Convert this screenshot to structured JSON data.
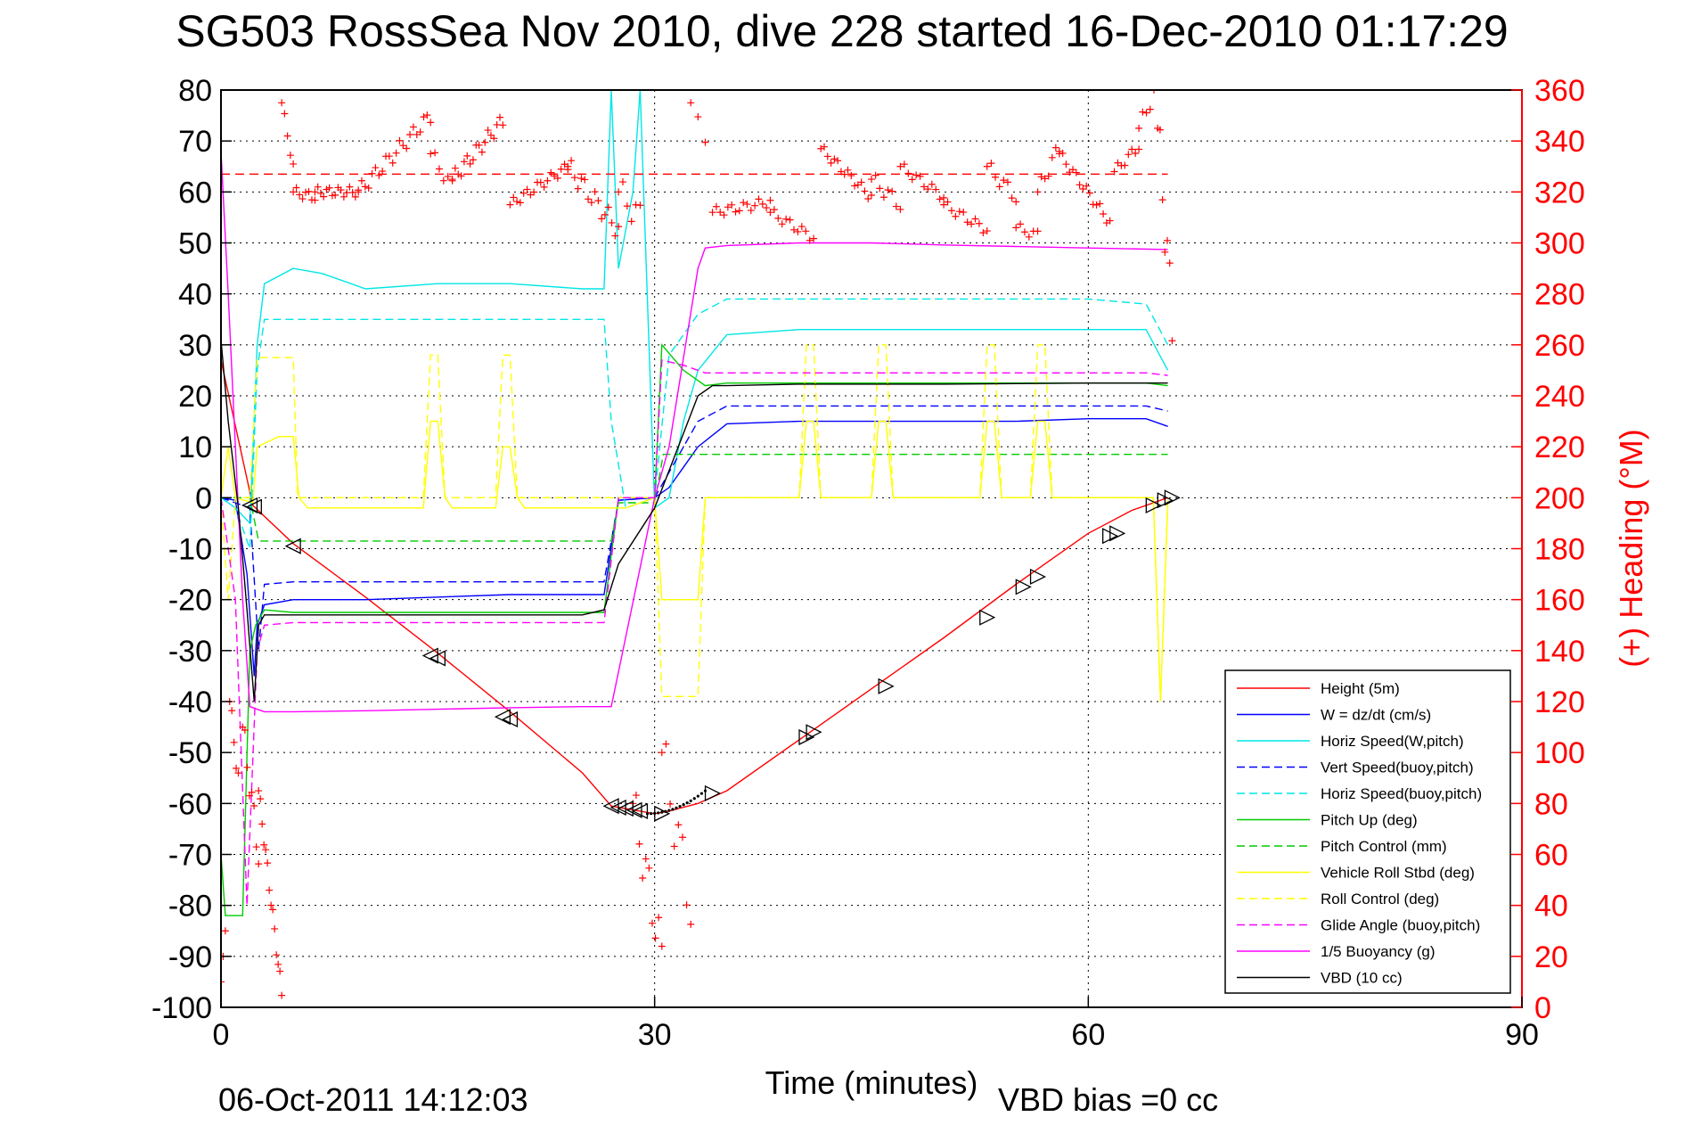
{
  "chart_data": {
    "type": "line",
    "title": "SG503 RossSea Nov 2010, dive 228 started 16-Dec-2010 01:17:29",
    "xlabel": "Time (minutes)",
    "ylabel": "",
    "y2label": "(+) Heading (°M)",
    "xlim": [
      0,
      90
    ],
    "ylim": [
      -100,
      80
    ],
    "y2lim": [
      0,
      360
    ],
    "xticks": [
      "0",
      "30",
      "60",
      "90"
    ],
    "yticks": [
      "80",
      "70",
      "60",
      "50",
      "40",
      "30",
      "20",
      "10",
      "0",
      "-10",
      "-20",
      "-30",
      "-40",
      "-50",
      "-60",
      "-70",
      "-80",
      "-90",
      "-100"
    ],
    "y2ticks": [
      "360",
      "340",
      "320",
      "300",
      "280",
      "260",
      "240",
      "220",
      "200",
      "180",
      "160",
      "140",
      "120",
      "100",
      "80",
      "60",
      "40",
      "20",
      "0"
    ],
    "grid": "dotted at x ticks",
    "legend_position": "bottom-right",
    "footer_left": "06-Oct-2011 14:12:03",
    "footer_right": "VBD bias =0 cc",
    "colors": {
      "red": "#ff0000",
      "blue": "#0000ff",
      "cyan": "#00e6e6",
      "green": "#00cc00",
      "yellow": "#ffff00",
      "magenta": "#ff00ff",
      "black": "#000000"
    },
    "series": [
      {
        "name": "Height (5m)",
        "color": "#ff0000",
        "dash": false,
        "x": [
          0,
          2.2,
          5,
          10,
          15,
          20,
          25,
          27,
          29,
          30,
          31,
          33,
          35,
          40,
          45,
          50,
          55,
          60,
          63,
          65.5
        ],
        "y": [
          27,
          -1.5,
          -9,
          -19.5,
          -30.5,
          -42,
          -54,
          -60.5,
          -61.5,
          -62,
          -61.5,
          -60,
          -57.5,
          -47.5,
          -37.5,
          -27.5,
          -17,
          -7,
          -2.5,
          0
        ]
      },
      {
        "name": "W = dz/dt (cm/s)",
        "color": "#0000ff",
        "dash": false,
        "x": [
          0,
          1,
          1.8,
          2.3,
          2.5,
          3,
          5,
          10,
          15,
          20,
          25,
          26.5,
          27.5,
          30,
          31,
          33,
          35,
          40,
          45,
          50,
          55,
          60,
          64,
          65.5
        ],
        "y": [
          0,
          -0.5,
          -15,
          -35,
          -25,
          -21,
          -20,
          -20,
          -19.5,
          -19,
          -19,
          -19,
          -0.5,
          0,
          2,
          10,
          14.5,
          15,
          15,
          15,
          15,
          15.5,
          15.5,
          14
        ]
      },
      {
        "name": "Horiz Speed(W,pitch)",
        "color": "#00e6e6",
        "dash": false,
        "x": [
          0,
          1,
          2,
          2.5,
          3,
          5,
          7,
          10,
          15,
          20,
          25,
          26.5,
          27,
          27.5,
          28.5,
          29,
          30,
          31,
          32,
          33,
          35,
          40,
          45,
          50,
          55,
          60,
          64,
          65.5
        ],
        "y": [
          0,
          -2,
          -5,
          30,
          42,
          45,
          44,
          41,
          42,
          42,
          41,
          41,
          80,
          45,
          60,
          80,
          -2,
          0,
          15,
          25,
          32,
          33,
          33,
          33,
          33,
          33,
          33,
          25
        ]
      },
      {
        "name": "Vert Speed(buoy,pitch)",
        "color": "#0000ff",
        "dash": true,
        "x": [
          0,
          2,
          2.6,
          3,
          5,
          10,
          15,
          20,
          25,
          26.5,
          27.5,
          30,
          31,
          33,
          35,
          40,
          45,
          50,
          55,
          60,
          64,
          65.5
        ],
        "y": [
          0,
          -2,
          -30,
          -17,
          -16.5,
          -16.5,
          -16.5,
          -16.5,
          -16.5,
          -16.5,
          -0.5,
          0,
          5,
          15,
          18,
          18,
          18,
          18,
          18,
          18,
          18,
          17
        ]
      },
      {
        "name": "Horiz Speed(buoy,pitch)",
        "color": "#00e6e6",
        "dash": true,
        "x": [
          0,
          1,
          2,
          2.5,
          3,
          5,
          10,
          15,
          20,
          25,
          26.5,
          27,
          28,
          30,
          31,
          33,
          35,
          40,
          45,
          50,
          55,
          60,
          64,
          65.5
        ],
        "y": [
          0,
          -2,
          -10,
          25,
          35,
          35,
          35,
          35,
          35,
          35,
          35,
          15,
          -2,
          0,
          28,
          36,
          39,
          39,
          39,
          39,
          39,
          39,
          38,
          30
        ]
      },
      {
        "name": "Pitch Up (deg)",
        "color": "#00cc00",
        "dash": false,
        "x": [
          0,
          0.3,
          1,
          1.5,
          2,
          2.4,
          3,
          5,
          10,
          15,
          20,
          25,
          26.5,
          27.5,
          30,
          30.5,
          32,
          33.5,
          35,
          40,
          45,
          50,
          55,
          60,
          64,
          65.5
        ],
        "y": [
          -70,
          -82,
          -82,
          -82,
          -30,
          -25,
          -22,
          -22.5,
          -22.5,
          -22.5,
          -22.5,
          -22.5,
          -22.5,
          0,
          0,
          30,
          25,
          22,
          22.5,
          22.5,
          22.5,
          22.5,
          22.5,
          22.5,
          22.5,
          22
        ]
      },
      {
        "name": "Pitch Control (mm)",
        "color": "#00cc00",
        "dash": true,
        "x": [
          0,
          2,
          2.6,
          10,
          20,
          27,
          27.5,
          30,
          30.6,
          33,
          40,
          50,
          60,
          65.5
        ],
        "y": [
          0,
          0,
          -8.5,
          -8.5,
          -8.5,
          -8.5,
          -1,
          -1,
          8.5,
          8.5,
          8.5,
          8.5,
          8.5,
          8.5
        ]
      },
      {
        "name": "Vehicle Roll Stbd (deg)",
        "color": "#ffff00",
        "dash": false,
        "x": [
          0,
          0.5,
          1,
          2.2,
          2.5,
          4,
          5,
          5.4,
          6,
          10,
          14,
          14.5,
          15,
          15.5,
          16,
          19,
          19.5,
          20,
          20.5,
          21,
          27,
          28,
          30,
          30.5,
          33,
          33.5,
          34,
          40,
          40.5,
          41,
          41.5,
          45,
          45.5,
          46,
          46.5,
          52.5,
          53,
          53.5,
          54,
          56,
          56.5,
          57,
          57.5,
          64.5,
          65,
          65.5
        ],
        "y": [
          0,
          10,
          0,
          -1,
          10,
          12,
          12,
          0,
          -2,
          -2,
          -2,
          15,
          15,
          0,
          -2,
          -2,
          10,
          10,
          0,
          -2,
          -2,
          -2,
          0,
          -20,
          -20,
          0,
          0,
          0,
          15,
          15,
          0,
          0,
          15,
          15,
          0,
          0,
          15,
          15,
          0,
          0,
          15,
          15,
          0,
          0,
          -40,
          -1
        ]
      },
      {
        "name": "Roll Control (deg)",
        "color": "#ffff00",
        "dash": true,
        "x": [
          0,
          0.5,
          1,
          2,
          2.5,
          5,
          5.3,
          6,
          14,
          14.5,
          15,
          15.5,
          19,
          19.5,
          20,
          20.5,
          27,
          30,
          30.5,
          33,
          33.5,
          40,
          40.5,
          41,
          41.5,
          45,
          45.5,
          46,
          46.5,
          52.5,
          53,
          53.5,
          54,
          56,
          56.5,
          57,
          57.5,
          64.5,
          65,
          65.5
        ],
        "y": [
          0,
          -20,
          0,
          0,
          27.5,
          27.5,
          0,
          0,
          0,
          28,
          28,
          0,
          0,
          28,
          28,
          0,
          0,
          0,
          -39,
          -39,
          0,
          0,
          30,
          30,
          0,
          0,
          30,
          30,
          0,
          0,
          30,
          30,
          0,
          0,
          30,
          30,
          0,
          0,
          -40,
          0
        ]
      },
      {
        "name": "Glide Angle (buoy,pitch)",
        "color": "#ff00ff",
        "dash": true,
        "x": [
          0,
          1,
          1.8,
          2.5,
          3,
          5,
          10,
          15,
          20,
          25,
          26.5,
          27.5,
          30,
          30.5,
          32,
          33.5,
          35,
          40,
          45,
          50,
          55,
          60,
          64,
          65.5
        ],
        "y": [
          0,
          -20,
          -80,
          -30,
          -25,
          -24.5,
          -24.5,
          -24.5,
          -24.5,
          -24.5,
          -24.5,
          0,
          0,
          27,
          26,
          24.5,
          24.5,
          24.5,
          24.5,
          24.5,
          24.5,
          24.5,
          24.5,
          24
        ]
      },
      {
        "name": "1/5 Buoyancy (g)",
        "color": "#ff00ff",
        "dash": false,
        "x": [
          0,
          0.5,
          1,
          1.5,
          2,
          3,
          5,
          10,
          15,
          20,
          25,
          27,
          30,
          31,
          33,
          33.5,
          35,
          40,
          45,
          50,
          55,
          60,
          65.5
        ],
        "y": [
          68,
          40,
          10,
          -20,
          -41,
          -42,
          -42,
          -41.8,
          -41.5,
          -41.2,
          -41,
          -41,
          0,
          10,
          45,
          49,
          49.5,
          50,
          50,
          49.6,
          49.3,
          49,
          48.7
        ]
      },
      {
        "name": "VBD (10 cc)",
        "color": "#000000",
        "dash": false,
        "x": [
          0,
          0.5,
          1.2,
          1.8,
          2.3,
          2.6,
          3,
          5,
          10,
          15,
          20,
          25,
          26.5,
          27.5,
          30,
          33,
          34,
          35,
          40,
          45,
          50,
          55,
          60,
          65.5
        ],
        "y": [
          31,
          15,
          -2,
          -22,
          -40,
          -25,
          -23,
          -23,
          -23,
          -23,
          -23,
          -23,
          -22,
          -13,
          -2,
          20,
          22,
          22,
          22.3,
          22.3,
          22.3,
          22.4,
          22.5,
          22.5
        ]
      }
    ],
    "reference_lines": [
      {
        "axis": "y2",
        "value": 327,
        "color": "#ff0000",
        "dash": true,
        "x_from": 0,
        "x_to": 65.5
      }
    ],
    "markers": {
      "heading_plus_color": "#ff0000",
      "triangle_color": "#000000"
    }
  }
}
